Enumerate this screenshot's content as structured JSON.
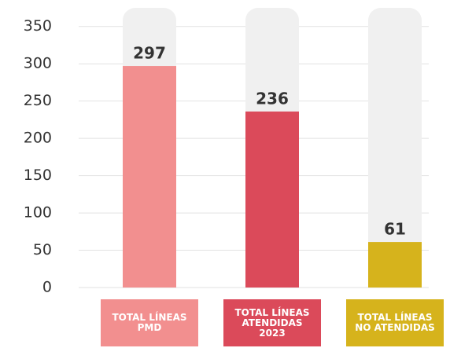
{
  "chart_data": {
    "type": "bar",
    "categories": [
      "TOTAL LÍNEAS\nPMD",
      "TOTAL LÍNEAS\nATENDIDAS\n2023",
      "TOTAL LÍNEAS\nNO ATENDIDAS"
    ],
    "values": [
      297,
      236,
      61
    ],
    "colors": [
      "#f28f8f",
      "#db4a5a",
      "#d6b31c"
    ],
    "ylim": [
      0,
      375
    ],
    "yticks": [
      0,
      50,
      100,
      150,
      200,
      250,
      300,
      350
    ],
    "grid": true
  }
}
